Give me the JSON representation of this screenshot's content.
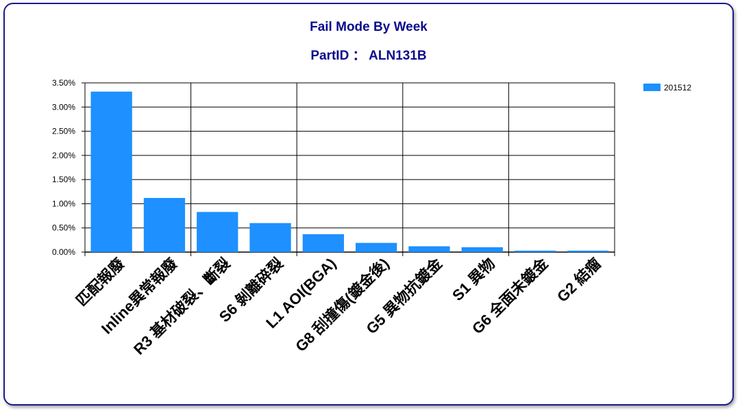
{
  "colors": {
    "bar": "#1e90ff",
    "title": "#0a0a8c",
    "frame": "#1a1a8c",
    "grid": "#000000"
  },
  "chart_data": {
    "type": "bar",
    "title": "Fail Mode By Week",
    "subtitle": "PartID ： ALN131B",
    "xlabel": "",
    "ylabel": "",
    "ylim": [
      0,
      3.5
    ],
    "y_tick_labels": [
      "0.00%",
      "0.50%",
      "1.00%",
      "1.50%",
      "2.00%",
      "2.50%",
      "3.00%",
      "3.50%"
    ],
    "categories": [
      "匹配報廢",
      "Inline異常報廢",
      "R3 基材破裂、斷裂",
      "S6 剝離碎裂",
      "L1 AOI(BGA)",
      "G8 刮撞傷(鍍金後)",
      "G5 異物抗鍍金",
      "S1 異物",
      "G6 全面未鍍金",
      "G2 結瘤"
    ],
    "series": [
      {
        "name": "201512",
        "values": [
          3.32,
          1.12,
          0.83,
          0.6,
          0.37,
          0.19,
          0.12,
          0.1,
          0.03,
          0.03
        ]
      }
    ],
    "grid": true,
    "legend_position": "top-right"
  }
}
